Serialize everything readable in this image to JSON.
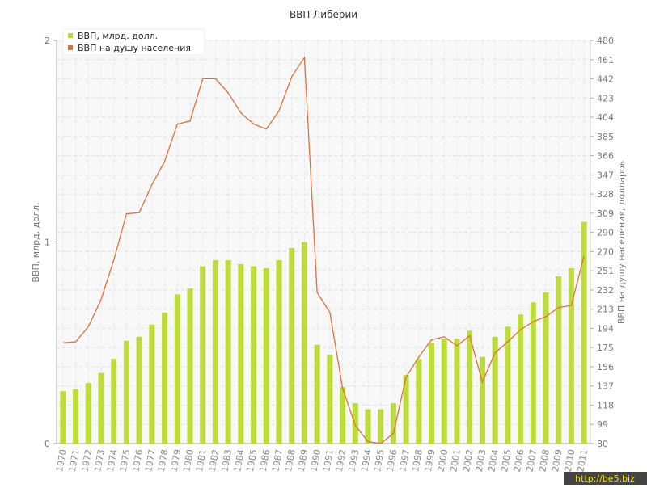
{
  "chart_data": {
    "type": "bar-line",
    "title": "ВВП Либерии",
    "y_label": "ВВП, млрд. долл.",
    "y2_label": "ВВП на душу населения, долларов",
    "watermark": "http://be5.biz",
    "legend": "top-left",
    "grid": true,
    "categories": [
      "1970",
      "1971",
      "1972",
      "1973",
      "1974",
      "1975",
      "1976",
      "1977",
      "1978",
      "1979",
      "1980",
      "1981",
      "1982",
      "1983",
      "1984",
      "1985",
      "1986",
      "1987",
      "1988",
      "1989",
      "1990",
      "1991",
      "1992",
      "1993",
      "1994",
      "1995",
      "1996",
      "1997",
      "1998",
      "1999",
      "2000",
      "2001",
      "2002",
      "2003",
      "2004",
      "2005",
      "2006",
      "2007",
      "2008",
      "2009",
      "2010",
      "2011"
    ],
    "ylim": [
      0,
      2
    ],
    "yticks": [
      0,
      1,
      2
    ],
    "y2lim": [
      80,
      480
    ],
    "y2ticks": [
      80,
      {
        "value": 99.05,
        "label": "99"
      },
      {
        "value": 118.1,
        "label": "118"
      },
      {
        "value": 137.14,
        "label": "137"
      },
      {
        "value": 156.19,
        "label": "156"
      },
      {
        "value": 175.24,
        "label": "175"
      },
      {
        "value": 194.29,
        "label": "194"
      },
      {
        "value": 213.33,
        "label": "213"
      },
      {
        "value": 232.38,
        "label": "232"
      },
      {
        "value": 251.43,
        "label": "251"
      },
      {
        "value": 270.48,
        "label": "270"
      },
      {
        "value": 289.52,
        "label": "290"
      },
      {
        "value": 308.57,
        "label": "309"
      },
      {
        "value": 327.62,
        "label": "328"
      },
      {
        "value": 346.67,
        "label": "347"
      },
      {
        "value": 365.71,
        "label": "366"
      },
      {
        "value": 384.76,
        "label": "385"
      },
      {
        "value": 403.81,
        "label": "404"
      },
      {
        "value": 422.86,
        "label": "423"
      },
      {
        "value": 441.9,
        "label": "442"
      },
      {
        "value": 460.95,
        "label": "461"
      },
      480
    ],
    "series": [
      {
        "name": "ВВП, млрд. долл.",
        "type": "bar",
        "color": "#bcdc3c",
        "values": [
          0.26,
          0.27,
          0.3,
          0.35,
          0.42,
          0.51,
          0.53,
          0.59,
          0.65,
          0.74,
          0.77,
          0.88,
          0.91,
          0.91,
          0.89,
          0.88,
          0.87,
          0.91,
          0.97,
          1.0,
          0.49,
          0.44,
          0.28,
          0.2,
          0.17,
          0.17,
          0.2,
          0.34,
          0.42,
          0.5,
          0.52,
          0.52,
          0.56,
          0.43,
          0.53,
          0.58,
          0.64,
          0.7,
          0.75,
          0.83,
          0.87,
          1.1
        ]
      },
      {
        "name": "ВВП на душу населения",
        "type": "line",
        "axis": "y2",
        "color": "#e0703a",
        "values": [
          180,
          181,
          196,
          223,
          262,
          308,
          309,
          337,
          360,
          397,
          400,
          442,
          442,
          428,
          408,
          397,
          392,
          410,
          444,
          463,
          230,
          210,
          135,
          98,
          82,
          80,
          90,
          146,
          166,
          183,
          186,
          177,
          187,
          141,
          170,
          181,
          193,
          201,
          206,
          215,
          217,
          266
        ]
      }
    ]
  }
}
